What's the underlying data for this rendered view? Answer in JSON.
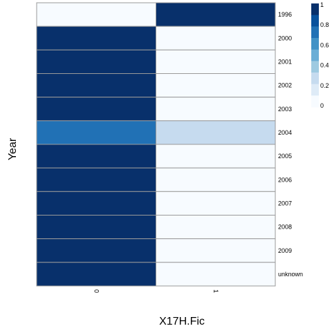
{
  "chart_data": {
    "type": "heatmap",
    "title": "",
    "xlabel": "X17H.Fic",
    "ylabel": "Year",
    "x_categories": [
      "0",
      "1"
    ],
    "y_categories": [
      "1996",
      "2000",
      "2001",
      "2002",
      "2003",
      "2004",
      "2005",
      "2006",
      "2007",
      "2008",
      "2009",
      "unknown"
    ],
    "values": [
      [
        0,
        1
      ],
      [
        1,
        0
      ],
      [
        1,
        0
      ],
      [
        1,
        0
      ],
      [
        1,
        0
      ],
      [
        0.75,
        0.25
      ],
      [
        1,
        0
      ],
      [
        1,
        0
      ],
      [
        1,
        0
      ],
      [
        1,
        0
      ],
      [
        1,
        0
      ],
      [
        1,
        0
      ]
    ],
    "value_range": [
      0,
      1
    ],
    "colorbar": {
      "ticks": [
        "1",
        "0.8",
        "0.6",
        "0.4",
        "0.2",
        "0"
      ],
      "tick_values": [
        1,
        0.8,
        0.6,
        0.4,
        0.2,
        0
      ],
      "colors": [
        "#f7fbff",
        "#deebf7",
        "#c6dbef",
        "#9ecae1",
        "#6baed6",
        "#4292c6",
        "#2171b5",
        "#08519c",
        "#08306b"
      ],
      "placement": "right"
    },
    "grid": false
  }
}
